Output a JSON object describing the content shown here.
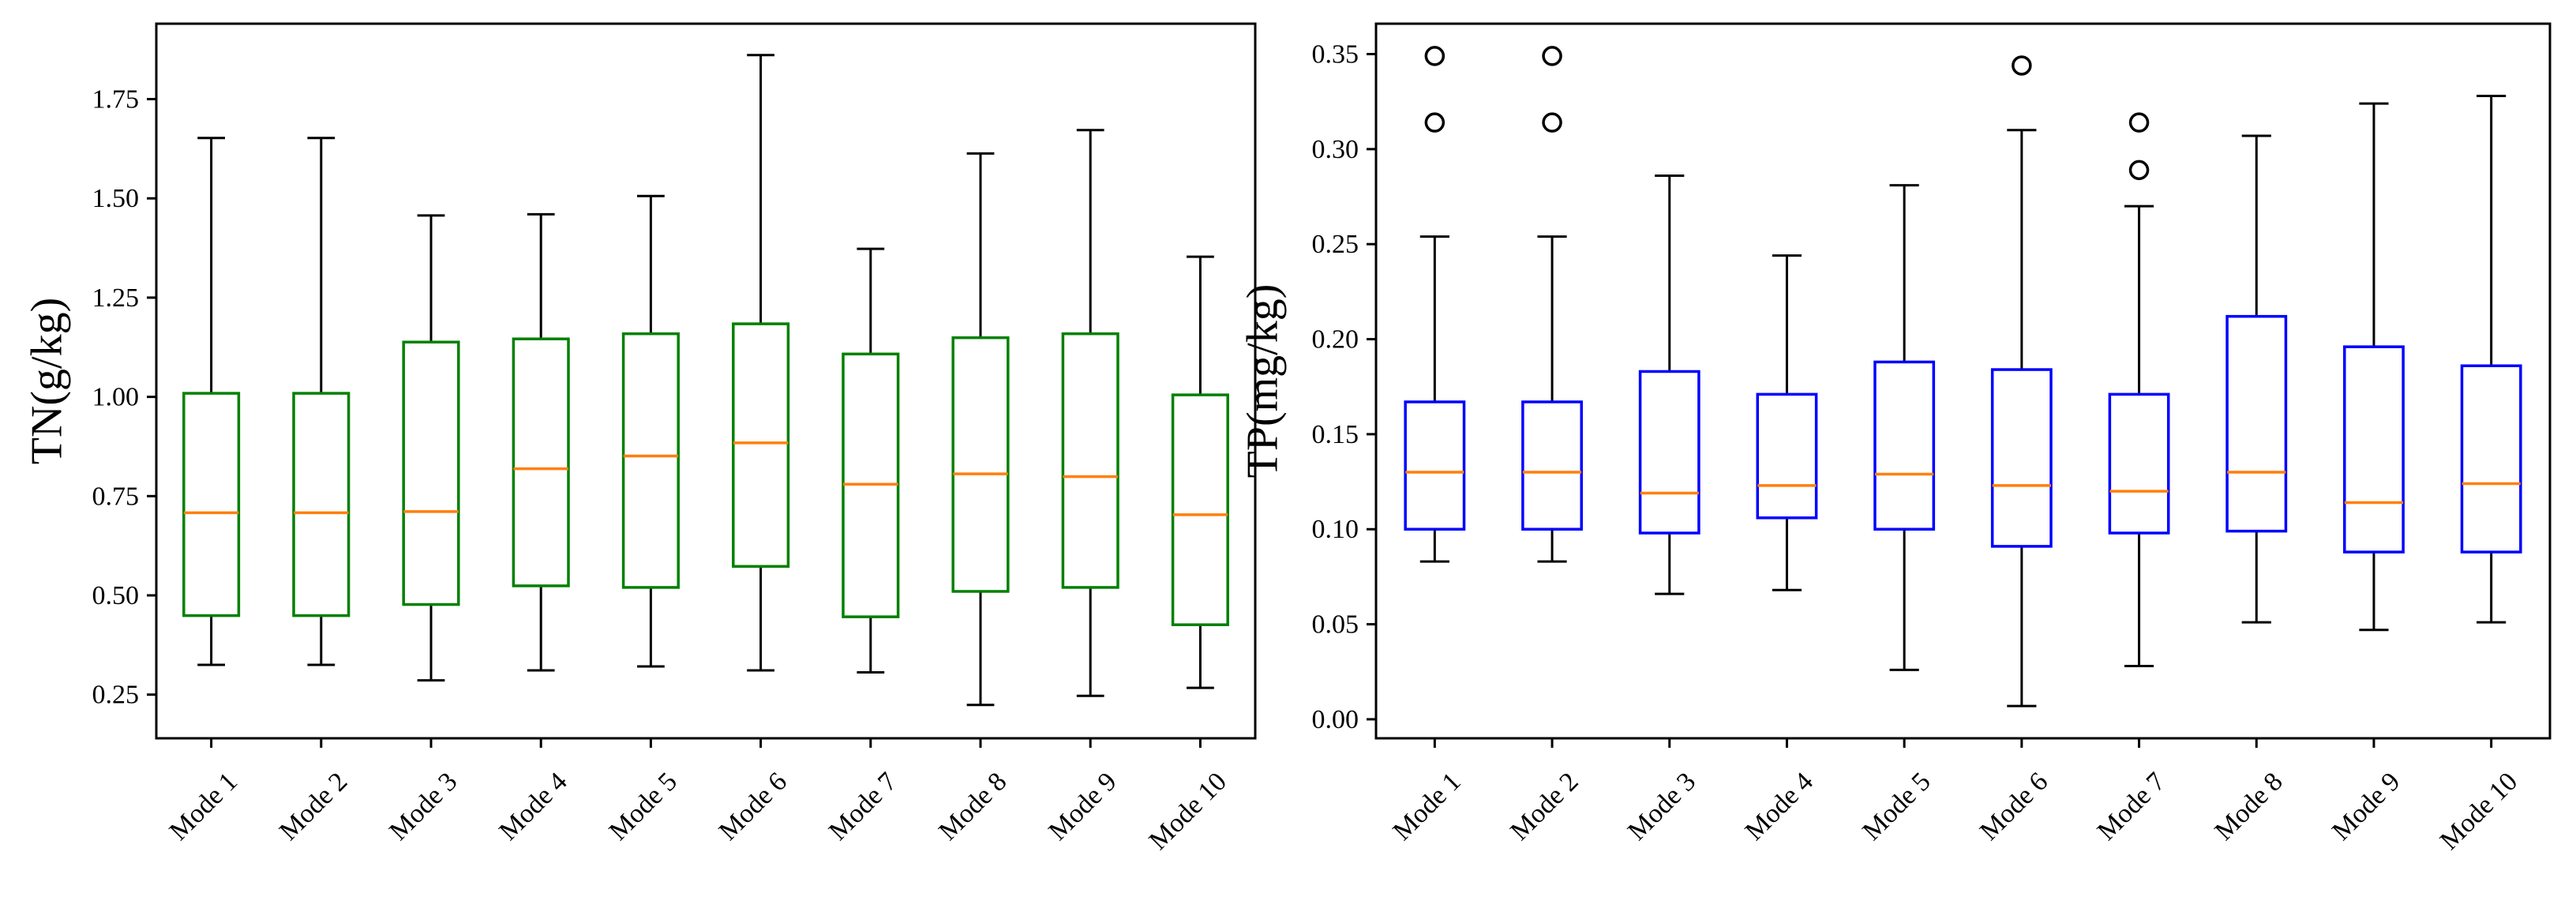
{
  "chart_data": [
    {
      "type": "boxplot",
      "title": "",
      "xlabel": "",
      "ylabel": "TN(g/kg)",
      "ylim": [
        0.14,
        1.94
      ],
      "yticks": [
        "0.25",
        "0.50",
        "0.75",
        "1.00",
        "1.25",
        "1.50",
        "1.75"
      ],
      "ytick_values": [
        0.25,
        0.5,
        0.75,
        1.0,
        1.25,
        1.5,
        1.75
      ],
      "box_color": "#008000",
      "median_color": "#ff7f0e",
      "grid": false,
      "categories": [
        "Mode 1",
        "Mode 2",
        "Mode 3",
        "Mode 4",
        "Mode 5",
        "Mode 6",
        "Mode 7",
        "Mode 8",
        "Mode 9",
        "Mode 10"
      ],
      "boxes": [
        {
          "whislo": 0.325,
          "q1": 0.449,
          "med": 0.708,
          "q3": 1.009,
          "whishi": 1.652,
          "fliers": []
        },
        {
          "whislo": 0.325,
          "q1": 0.449,
          "med": 0.708,
          "q3": 1.009,
          "whishi": 1.652,
          "fliers": []
        },
        {
          "whislo": 0.286,
          "q1": 0.477,
          "med": 0.711,
          "q3": 1.138,
          "whishi": 1.457,
          "fliers": []
        },
        {
          "whislo": 0.311,
          "q1": 0.524,
          "med": 0.819,
          "q3": 1.146,
          "whishi": 1.46,
          "fliers": []
        },
        {
          "whislo": 0.321,
          "q1": 0.52,
          "med": 0.851,
          "q3": 1.159,
          "whishi": 1.506,
          "fliers": []
        },
        {
          "whislo": 0.311,
          "q1": 0.573,
          "med": 0.884,
          "q3": 1.184,
          "whishi": 1.861,
          "fliers": []
        },
        {
          "whislo": 0.306,
          "q1": 0.446,
          "med": 0.78,
          "q3": 1.108,
          "whishi": 1.373,
          "fliers": []
        },
        {
          "whislo": 0.224,
          "q1": 0.51,
          "med": 0.806,
          "q3": 1.149,
          "whishi": 1.613,
          "fliers": []
        },
        {
          "whislo": 0.247,
          "q1": 0.52,
          "med": 0.799,
          "q3": 1.159,
          "whishi": 1.672,
          "fliers": []
        },
        {
          "whislo": 0.267,
          "q1": 0.426,
          "med": 0.703,
          "q3": 1.005,
          "whishi": 1.353,
          "fliers": []
        }
      ]
    },
    {
      "type": "boxplot",
      "title": "",
      "xlabel": "",
      "ylabel": "TP(mg/kg)",
      "ylim": [
        -0.01,
        0.366
      ],
      "yticks": [
        "0.00",
        "0.05",
        "0.10",
        "0.15",
        "0.20",
        "0.25",
        "0.30",
        "0.35"
      ],
      "ytick_values": [
        0,
        0.05,
        0.1,
        0.15,
        0.2,
        0.25,
        0.3,
        0.35
      ],
      "box_color": "#0000ff",
      "median_color": "#ff7f0e",
      "grid": false,
      "categories": [
        "Mode 1",
        "Mode 2",
        "Mode 3",
        "Mode 4",
        "Mode 5",
        "Mode 6",
        "Mode 7",
        "Mode 8",
        "Mode 9",
        "Mode 10"
      ],
      "boxes": [
        {
          "whislo": 0.083,
          "q1": 0.1,
          "med": 0.13,
          "q3": 0.167,
          "whishi": 0.254,
          "fliers": [
            0.314,
            0.349
          ]
        },
        {
          "whislo": 0.083,
          "q1": 0.1,
          "med": 0.13,
          "q3": 0.167,
          "whishi": 0.254,
          "fliers": [
            0.314,
            0.349
          ]
        },
        {
          "whislo": 0.066,
          "q1": 0.098,
          "med": 0.119,
          "q3": 0.183,
          "whishi": 0.286,
          "fliers": []
        },
        {
          "whislo": 0.068,
          "q1": 0.106,
          "med": 0.123,
          "q3": 0.171,
          "whishi": 0.244,
          "fliers": []
        },
        {
          "whislo": 0.026,
          "q1": 0.1,
          "med": 0.129,
          "q3": 0.188,
          "whishi": 0.281,
          "fliers": []
        },
        {
          "whislo": 0.007,
          "q1": 0.091,
          "med": 0.123,
          "q3": 0.184,
          "whishi": 0.31,
          "fliers": [
            0.344
          ]
        },
        {
          "whislo": 0.028,
          "q1": 0.098,
          "med": 0.12,
          "q3": 0.171,
          "whishi": 0.27,
          "fliers": [
            0.289,
            0.314
          ]
        },
        {
          "whislo": 0.051,
          "q1": 0.099,
          "med": 0.13,
          "q3": 0.212,
          "whishi": 0.307,
          "fliers": []
        },
        {
          "whislo": 0.047,
          "q1": 0.088,
          "med": 0.114,
          "q3": 0.196,
          "whishi": 0.324,
          "fliers": []
        },
        {
          "whislo": 0.051,
          "q1": 0.088,
          "med": 0.124,
          "q3": 0.186,
          "whishi": 0.328,
          "fliers": []
        }
      ]
    }
  ]
}
